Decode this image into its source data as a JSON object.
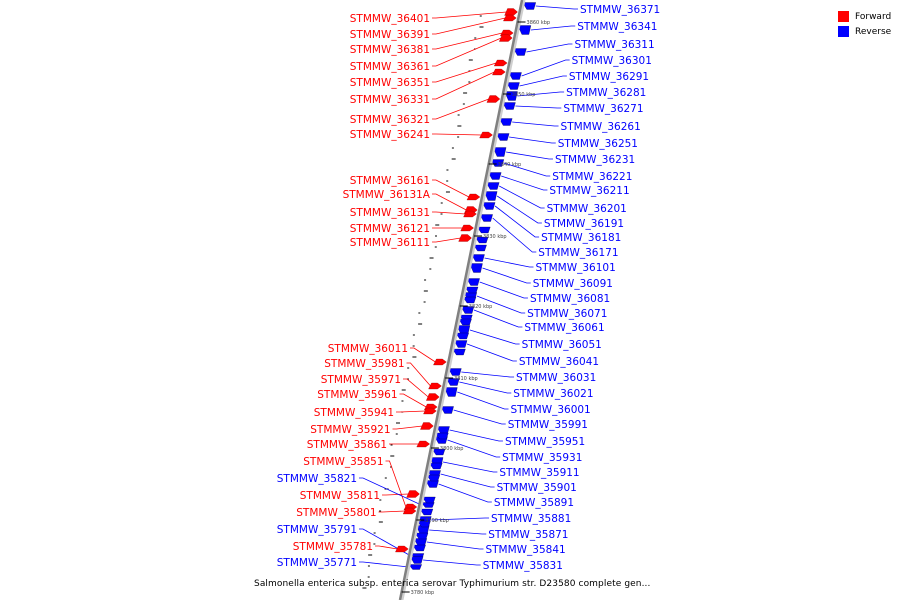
{
  "title": "Salmonella enterica subsp. enterica serovar Typhimurium str. D23580 complete gen...",
  "legend": {
    "forward_label": "Forward",
    "forward_color": "#ff0000",
    "reverse_label": "Reverse",
    "reverse_color": "#0000ff"
  },
  "ticks": [
    "3860 kbp",
    "3850 kbp",
    "3840 kbp",
    "3830 kbp",
    "3820 kbp",
    "3810 kbp",
    "3800 kbp",
    "3790 kbp",
    "3780 kbp"
  ],
  "forward_labels": [
    "STMMW_36401",
    "STMMW_36391",
    "STMMW_36381",
    "STMMW_36361",
    "STMMW_36351",
    "STMMW_36331",
    "STMMW_36321",
    "STMMW_36241",
    "STMMW_36161",
    "STMMW_36131A",
    "STMMW_36131",
    "STMMW_36121",
    "STMMW_36111",
    "STMMW_36011",
    "STMMW_35981",
    "STMMW_35971",
    "STMMW_35961",
    "STMMW_35941",
    "STMMW_35921",
    "STMMW_35861",
    "STMMW_35851",
    "STMMW_35811",
    "STMMW_35801",
    "STMMW_35781"
  ],
  "reverse_left_labels": [
    "STMMW_35821",
    "STMMW_35791",
    "STMMW_35771"
  ],
  "reverse_labels": [
    "STMMW_36371",
    "STMMW_36341",
    "STMMW_36311",
    "STMMW_36301",
    "STMMW_36291",
    "STMMW_36281",
    "STMMW_36271",
    "STMMW_36261",
    "STMMW_36251",
    "STMMW_36231",
    "STMMW_36221",
    "STMMW_36211",
    "STMMW_36201",
    "STMMW_36191",
    "STMMW_36181",
    "STMMW_36171",
    "STMMW_36101",
    "STMMW_36091",
    "STMMW_36081",
    "STMMW_36071",
    "STMMW_36061",
    "STMMW_36051",
    "STMMW_36041",
    "STMMW_36031",
    "STMMW_36021",
    "STMMW_36001",
    "STMMW_35991",
    "STMMW_35951",
    "STMMW_35931",
    "STMMW_35911",
    "STMMW_35901",
    "STMMW_35891",
    "STMMW_35881",
    "STMMW_35871",
    "STMMW_35841",
    "STMMW_35831"
  ]
}
